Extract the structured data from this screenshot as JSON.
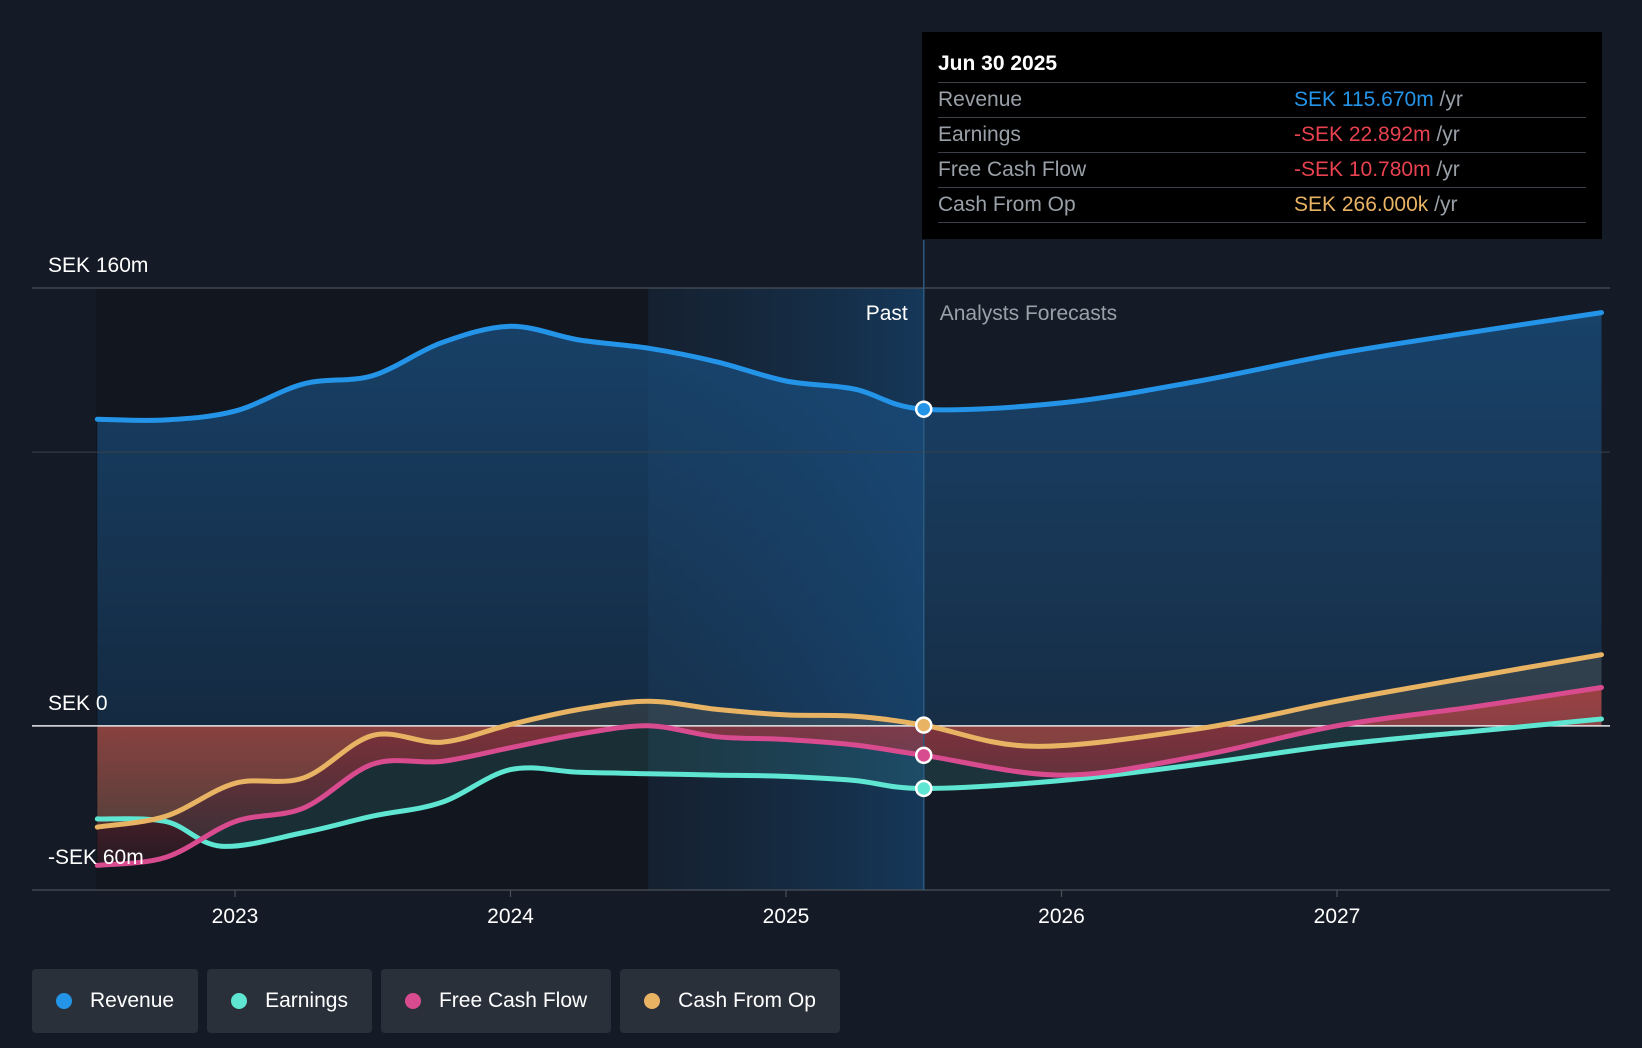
{
  "chart_data": {
    "type": "line",
    "y_unit": "SEK m",
    "ylim": [
      -60,
      160
    ],
    "y_labels": [
      "SEK 160m",
      "SEK 0",
      "-SEK 60m"
    ],
    "x_ticks": [
      "2023",
      "2024",
      "2025",
      "2026",
      "2027"
    ],
    "past_label": "Past",
    "forecast_label": "Analysts Forecasts",
    "past_end": 2025.5,
    "series": [
      {
        "name": "Revenue",
        "color": "#2494e8",
        "points": [
          [
            2022.5,
            112
          ],
          [
            2022.75,
            111.8
          ],
          [
            2023.0,
            115
          ],
          [
            2023.25,
            125
          ],
          [
            2023.5,
            128
          ],
          [
            2023.75,
            140
          ],
          [
            2024.0,
            146
          ],
          [
            2024.25,
            141
          ],
          [
            2024.5,
            138
          ],
          [
            2024.75,
            133
          ],
          [
            2025.0,
            126
          ],
          [
            2025.25,
            123
          ],
          [
            2025.5,
            115.7
          ],
          [
            2026.0,
            118
          ],
          [
            2026.5,
            126
          ],
          [
            2027.0,
            136
          ],
          [
            2027.5,
            144
          ],
          [
            2027.96,
            151
          ]
        ]
      },
      {
        "name": "Earnings",
        "color": "#5ee6d2",
        "points": [
          [
            2022.5,
            -34
          ],
          [
            2022.75,
            -35
          ],
          [
            2022.95,
            -44
          ],
          [
            2023.25,
            -39
          ],
          [
            2023.5,
            -33
          ],
          [
            2023.75,
            -28
          ],
          [
            2024.0,
            -16
          ],
          [
            2024.25,
            -17
          ],
          [
            2024.5,
            -17.5
          ],
          [
            2024.75,
            -18
          ],
          [
            2025.0,
            -18.5
          ],
          [
            2025.25,
            -20
          ],
          [
            2025.5,
            -22.9
          ],
          [
            2026.0,
            -20
          ],
          [
            2026.5,
            -14
          ],
          [
            2027.0,
            -7
          ],
          [
            2027.5,
            -2
          ],
          [
            2027.96,
            2.5
          ]
        ]
      },
      {
        "name": "Free Cash Flow",
        "color": "#d94b8f",
        "points": [
          [
            2022.5,
            -51
          ],
          [
            2022.75,
            -48
          ],
          [
            2023.0,
            -35
          ],
          [
            2023.25,
            -30
          ],
          [
            2023.5,
            -14
          ],
          [
            2023.75,
            -13
          ],
          [
            2024.0,
            -8
          ],
          [
            2024.25,
            -3
          ],
          [
            2024.5,
            0
          ],
          [
            2024.75,
            -4
          ],
          [
            2025.0,
            -5
          ],
          [
            2025.25,
            -7
          ],
          [
            2025.5,
            -10.78
          ],
          [
            2026.0,
            -18
          ],
          [
            2026.5,
            -11
          ],
          [
            2027.0,
            0
          ],
          [
            2027.5,
            7
          ],
          [
            2027.96,
            14
          ]
        ]
      },
      {
        "name": "Cash From Op",
        "color": "#e8b464",
        "points": [
          [
            2022.5,
            -37
          ],
          [
            2022.75,
            -33
          ],
          [
            2023.0,
            -21
          ],
          [
            2023.25,
            -19
          ],
          [
            2023.5,
            -3.5
          ],
          [
            2023.75,
            -6
          ],
          [
            2024.0,
            0.5
          ],
          [
            2024.25,
            6
          ],
          [
            2024.5,
            9
          ],
          [
            2024.75,
            6
          ],
          [
            2025.0,
            4
          ],
          [
            2025.25,
            3.5
          ],
          [
            2025.5,
            0.266
          ],
          [
            2025.9,
            -7.5
          ],
          [
            2026.5,
            -1
          ],
          [
            2027.0,
            9
          ],
          [
            2027.5,
            18
          ],
          [
            2027.96,
            26
          ]
        ]
      }
    ]
  },
  "tooltip": {
    "date": "Jun 30 2025",
    "rows": [
      {
        "label": "Revenue",
        "value": "SEK 115.670m",
        "unit": "/yr",
        "color": "#2494e8"
      },
      {
        "label": "Earnings",
        "value": "-SEK 22.892m",
        "unit": "/yr",
        "color": "#e8414f"
      },
      {
        "label": "Free Cash Flow",
        "value": "-SEK 10.780m",
        "unit": "/yr",
        "color": "#e8414f"
      },
      {
        "label": "Cash From Op",
        "value": "SEK 266.000k",
        "unit": "/yr",
        "color": "#e8b464"
      }
    ]
  },
  "legend": [
    {
      "label": "Revenue",
      "color": "#2494e8"
    },
    {
      "label": "Earnings",
      "color": "#5ee6d2"
    },
    {
      "label": "Free Cash Flow",
      "color": "#d94b8f"
    },
    {
      "label": "Cash From Op",
      "color": "#e8b464"
    }
  ]
}
